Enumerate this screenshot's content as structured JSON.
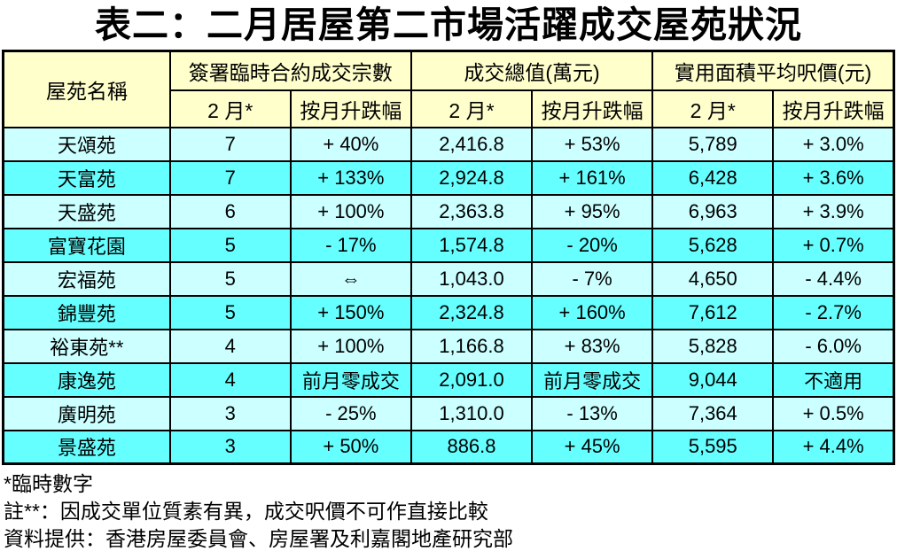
{
  "title": "表二：二月居屋第二市場活躍成交屋苑狀況",
  "colors": {
    "header_bg": "#FFFFCC",
    "row_light_bg": "#CCFFFF",
    "row_dark_bg": "#66FFFF",
    "border": "#000000",
    "text": "#000000"
  },
  "table": {
    "header": {
      "estate": "屋苑名稱",
      "groups": [
        {
          "label": "簽署臨時合約成交宗數"
        },
        {
          "label": "成交總值(萬元)"
        },
        {
          "label": "實用面積平均呎價(元)"
        }
      ],
      "sub": {
        "feb": "2 月*",
        "change": "按月升跌幅"
      }
    },
    "rows": [
      {
        "estate": "天頌苑",
        "cells": [
          "7",
          "+ 40%",
          "2,416.8",
          "+ 53%",
          "5,789",
          "+ 3.0%"
        ]
      },
      {
        "estate": "天富苑",
        "cells": [
          "7",
          "+ 133%",
          "2,924.8",
          "+ 161%",
          "6,428",
          "+ 3.6%"
        ]
      },
      {
        "estate": "天盛苑",
        "cells": [
          "6",
          "+ 100%",
          "2,363.8",
          "+ 95%",
          "6,963",
          "+ 3.9%"
        ]
      },
      {
        "estate": "富寶花園",
        "cells": [
          "5",
          "- 17%",
          "1,574.8",
          "- 20%",
          "5,628",
          "+ 0.7%"
        ]
      },
      {
        "estate": "宏福苑",
        "cells": [
          "5",
          "⇔",
          "1,043.0",
          "- 7%",
          "4,650",
          "- 4.4%"
        ]
      },
      {
        "estate": "錦豐苑",
        "cells": [
          "5",
          "+ 150%",
          "2,324.8",
          "+ 160%",
          "7,612",
          "- 2.7%"
        ]
      },
      {
        "estate": "裕東苑**",
        "cells": [
          "4",
          "+ 100%",
          "1,166.8",
          "+ 83%",
          "5,828",
          "- 6.0%"
        ]
      },
      {
        "estate": "康逸苑",
        "cells": [
          "4",
          "前月零成交",
          "2,091.0",
          "前月零成交",
          "9,044",
          "不適用"
        ]
      },
      {
        "estate": "廣明苑",
        "cells": [
          "3",
          "- 25%",
          "1,310.0",
          "- 13%",
          "7,364",
          "+ 0.5%"
        ]
      },
      {
        "estate": "景盛苑",
        "cells": [
          "3",
          "+ 50%",
          "886.8",
          "+ 45%",
          "5,595",
          "+ 4.4%"
        ]
      }
    ]
  },
  "footnotes": [
    "*臨時數字",
    "註**：因成交單位質素有異，成交呎價不可作直接比較",
    "資料提供：香港房屋委員會、房屋署及利嘉閣地產研究部"
  ],
  "chart_data": {
    "type": "table",
    "title": "表二：二月居屋第二市場活躍成交屋苑狀況",
    "columns": [
      "屋苑名稱",
      "簽署臨時合約成交宗數 2 月*",
      "簽署臨時合約成交宗數 按月升跌幅",
      "成交總值(萬元) 2 月*",
      "成交總值(萬元) 按月升跌幅",
      "實用面積平均呎價(元) 2 月*",
      "實用面積平均呎價(元) 按月升跌幅"
    ],
    "rows": [
      [
        "天頌苑",
        "7",
        "+ 40%",
        "2,416.8",
        "+ 53%",
        "5,789",
        "+ 3.0%"
      ],
      [
        "天富苑",
        "7",
        "+ 133%",
        "2,924.8",
        "+ 161%",
        "6,428",
        "+ 3.6%"
      ],
      [
        "天盛苑",
        "6",
        "+ 100%",
        "2,363.8",
        "+ 95%",
        "6,963",
        "+ 3.9%"
      ],
      [
        "富寶花園",
        "5",
        "- 17%",
        "1,574.8",
        "- 20%",
        "5,628",
        "+ 0.7%"
      ],
      [
        "宏福苑",
        "5",
        "⇔",
        "1,043.0",
        "- 7%",
        "4,650",
        "- 4.4%"
      ],
      [
        "錦豐苑",
        "5",
        "+ 150%",
        "2,324.8",
        "+ 160%",
        "7,612",
        "- 2.7%"
      ],
      [
        "裕東苑**",
        "4",
        "+ 100%",
        "1,166.8",
        "+ 83%",
        "5,828",
        "- 6.0%"
      ],
      [
        "康逸苑",
        "4",
        "前月零成交",
        "2,091.0",
        "前月零成交",
        "9,044",
        "不適用"
      ],
      [
        "廣明苑",
        "3",
        "- 25%",
        "1,310.0",
        "- 13%",
        "7,364",
        "+ 0.5%"
      ],
      [
        "景盛苑",
        "3",
        "+ 50%",
        "886.8",
        "+ 45%",
        "5,595",
        "+ 4.4%"
      ]
    ]
  }
}
